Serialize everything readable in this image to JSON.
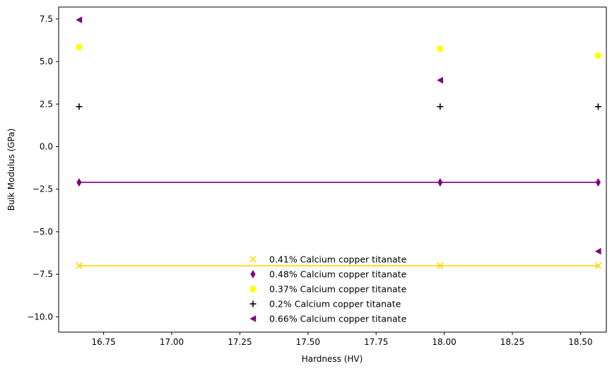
{
  "chart_data": {
    "type": "scatter",
    "title": "",
    "xlabel": "Hardness (HV)",
    "ylabel": "Bulk Modulus (GPa)",
    "xlim": [
      16.585,
      18.595
    ],
    "ylim": [
      -10.9,
      8.2
    ],
    "xticks": [
      16.75,
      17.0,
      17.25,
      17.5,
      17.75,
      18.0,
      18.25,
      18.5
    ],
    "xtick_labels": [
      "16.75",
      "17.00",
      "17.25",
      "17.50",
      "17.75",
      "18.00",
      "18.25",
      "18.50"
    ],
    "yticks": [
      -10.0,
      -7.5,
      -5.0,
      -2.5,
      0.0,
      2.5,
      5.0,
      7.5
    ],
    "ytick_labels": [
      "−10.0",
      "−7.5",
      "−5.0",
      "−2.5",
      "0.0",
      "2.5",
      "5.0",
      "7.5"
    ],
    "grid": false,
    "legend_position": "lower center",
    "x": [
      16.66,
      17.985,
      18.565
    ],
    "series": [
      {
        "name": "0.41% Calcium copper titanate",
        "marker": "x",
        "color": "#ffd700",
        "values": [
          -7.0,
          -7.0,
          -7.0
        ],
        "line": true
      },
      {
        "name": "0.48% Calcium copper titanate",
        "marker": "thin_diamond",
        "color": "#800080",
        "values": [
          -2.1,
          -2.1,
          -2.1
        ],
        "line": true
      },
      {
        "name": "0.37% Calcium copper titanate",
        "marker": "circle",
        "color": "#ffff00",
        "values": [
          5.85,
          5.75,
          5.35
        ],
        "line": false
      },
      {
        "name": "0.2% Calcium copper titanate",
        "marker": "plus",
        "color": "#000000",
        "values": [
          2.35,
          2.35,
          2.35
        ],
        "line": false
      },
      {
        "name": "0.66% Calcium copper titanate",
        "marker": "triangle_left",
        "color": "#800080",
        "values": [
          7.45,
          3.9,
          -6.15
        ],
        "line": false
      }
    ]
  }
}
